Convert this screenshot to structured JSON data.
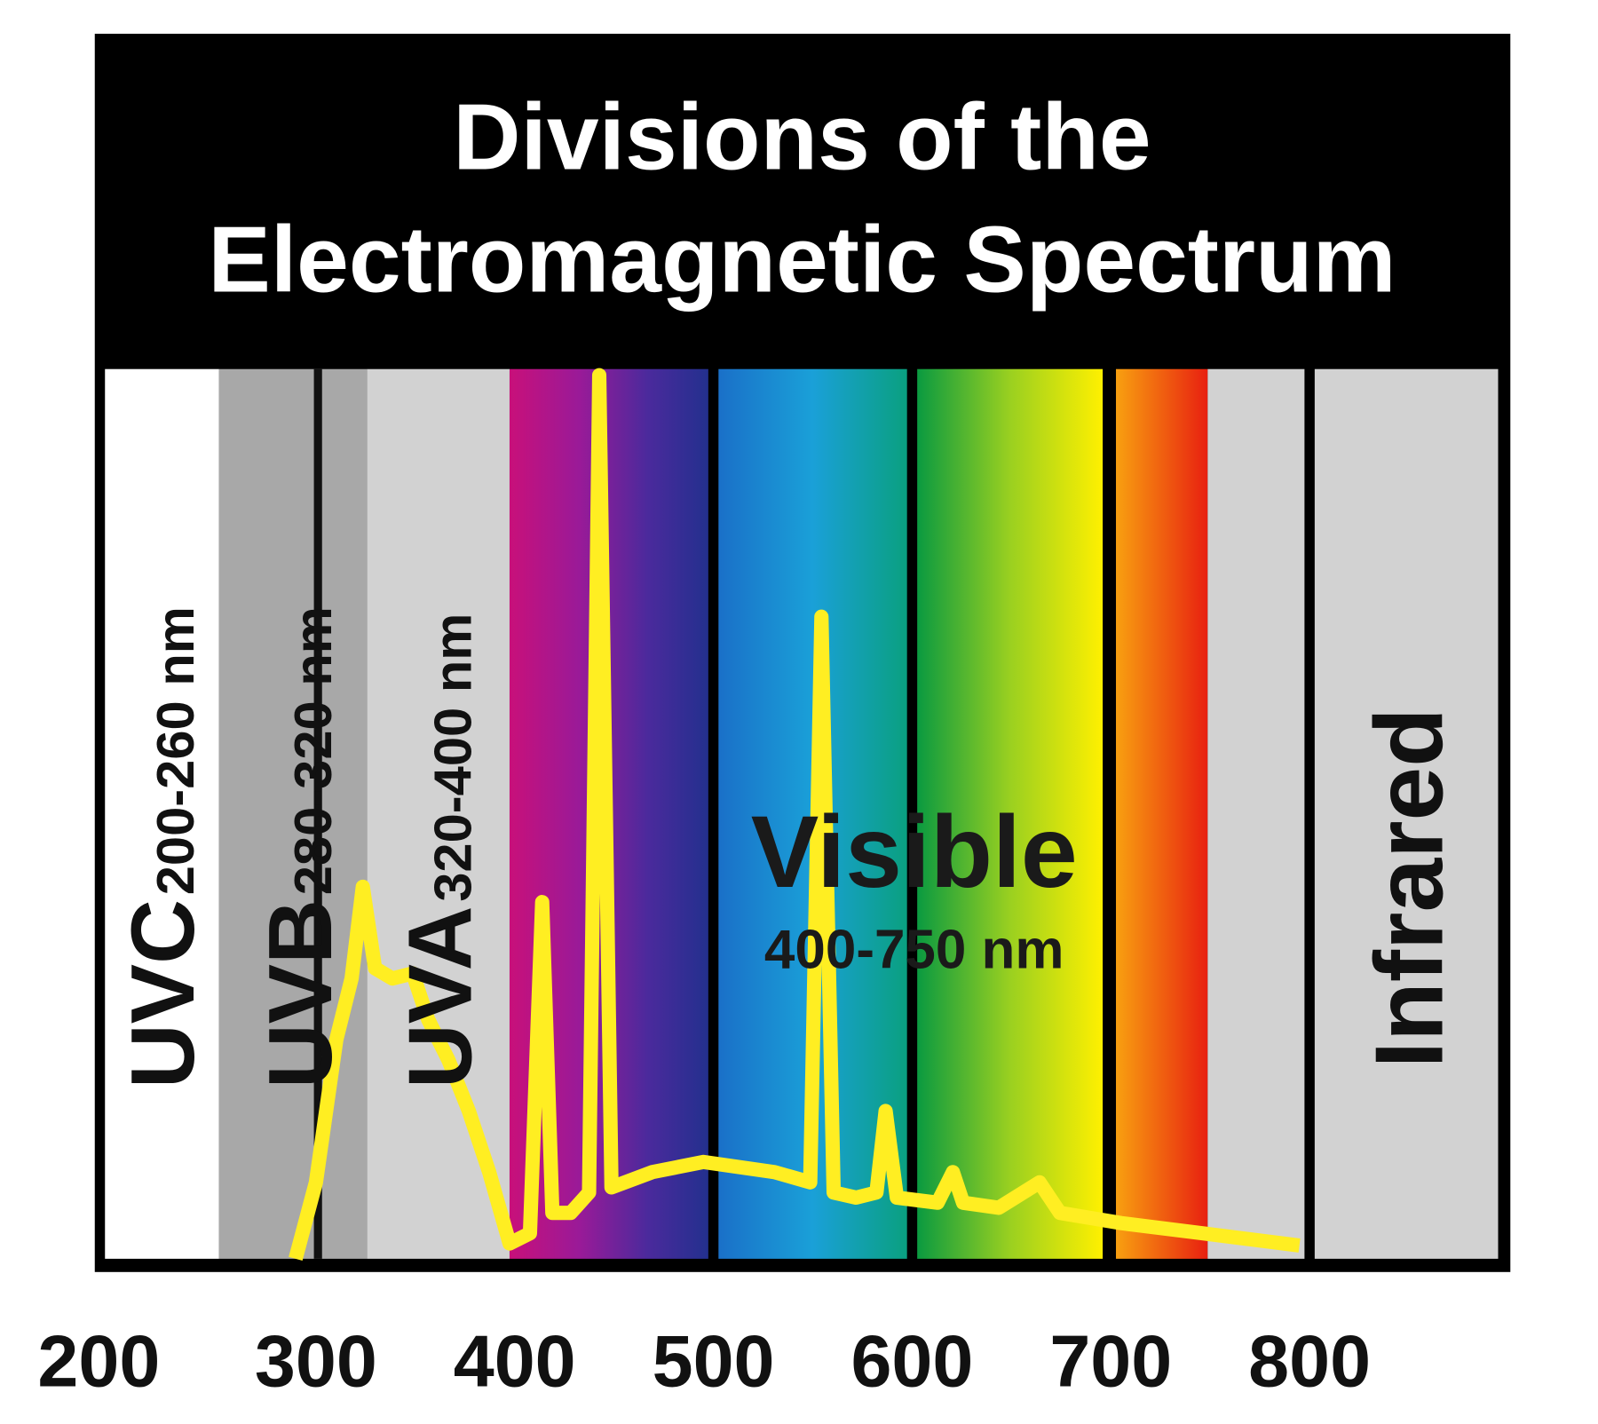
{
  "title": [
    "Divisions of the",
    "Electromagnetic Spectrum"
  ],
  "bands": [
    {
      "name": "UVC",
      "range": "200-260 nm"
    },
    {
      "name": "UVB",
      "range": "280-320 nm"
    },
    {
      "name": "UVA",
      "range": "320-400 nm"
    }
  ],
  "visible": {
    "name": "Visible",
    "range": "400-750 nm"
  },
  "infrared": "Infrared",
  "axis_ticks": [
    200,
    300,
    400,
    500,
    600,
    700,
    800
  ]
}
